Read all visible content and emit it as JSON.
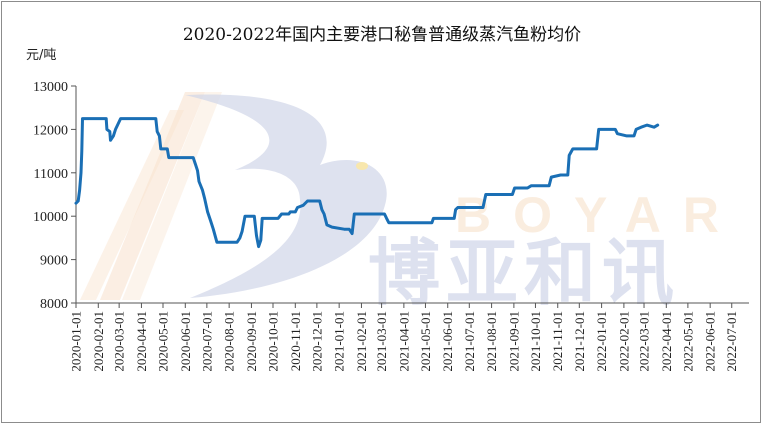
{
  "chart_data": {
    "type": "line",
    "title": "2020-2022年国内主要港口秘鲁普通级蒸汽鱼粉均价",
    "ylabel": "元/吨",
    "xlabel": "",
    "ylim": [
      8000,
      13000
    ],
    "yticks": [
      8000,
      9000,
      10000,
      11000,
      12000,
      13000
    ],
    "grid": false,
    "legend": "none",
    "line_color": "#1a6fb5",
    "watermark": {
      "logo_letter": "B",
      "en": "BOYAR",
      "cn": "博亚和讯"
    },
    "x_tick_labels": [
      "2020-01-01",
      "2020-02-01",
      "2020-03-01",
      "2020-04-01",
      "2020-05-01",
      "2020-06-01",
      "2020-07-01",
      "2020-08-01",
      "2020-09-01",
      "2020-10-01",
      "2020-11-01",
      "2020-12-01",
      "2021-01-01",
      "2021-02-01",
      "2021-03-01",
      "2021-04-01",
      "2021-05-01",
      "2021-06-01",
      "2021-07-01",
      "2021-08-01",
      "2021-09-01",
      "2021-10-01",
      "2021-11-01",
      "2021-12-01",
      "2022-01-01",
      "2022-02-01",
      "2022-03-01",
      "2022-04-01",
      "2022-05-01",
      "2022-06-01",
      "2022-07-01"
    ],
    "series": [
      {
        "points": [
          [
            "2020-01-01",
            10300
          ],
          [
            "2020-01-04",
            10350
          ],
          [
            "2020-01-06",
            10600
          ],
          [
            "2020-01-08",
            11000
          ],
          [
            "2020-01-09",
            11500
          ],
          [
            "2020-01-10",
            12250
          ],
          [
            "2020-02-12",
            12250
          ],
          [
            "2020-02-13",
            12000
          ],
          [
            "2020-02-17",
            11950
          ],
          [
            "2020-02-18",
            11750
          ],
          [
            "2020-02-22",
            11850
          ],
          [
            "2020-02-25",
            12000
          ],
          [
            "2020-03-03",
            12250
          ],
          [
            "2020-04-21",
            12250
          ],
          [
            "2020-04-23",
            11950
          ],
          [
            "2020-04-26",
            11850
          ],
          [
            "2020-04-28",
            11550
          ],
          [
            "2020-05-07",
            11550
          ],
          [
            "2020-05-09",
            11350
          ],
          [
            "2020-06-01",
            11350
          ],
          [
            "2020-06-12",
            11350
          ],
          [
            "2020-06-15",
            11200
          ],
          [
            "2020-06-18",
            11050
          ],
          [
            "2020-06-20",
            10800
          ],
          [
            "2020-06-25",
            10600
          ],
          [
            "2020-06-28",
            10400
          ],
          [
            "2020-07-02",
            10100
          ],
          [
            "2020-07-06",
            9900
          ],
          [
            "2020-07-10",
            9700
          ],
          [
            "2020-07-15",
            9400
          ],
          [
            "2020-08-12",
            9400
          ],
          [
            "2020-08-16",
            9500
          ],
          [
            "2020-08-19",
            9650
          ],
          [
            "2020-08-23",
            10000
          ],
          [
            "2020-09-05",
            10000
          ],
          [
            "2020-09-08",
            9550
          ],
          [
            "2020-09-11",
            9300
          ],
          [
            "2020-09-14",
            9450
          ],
          [
            "2020-09-16",
            9950
          ],
          [
            "2020-10-08",
            9950
          ],
          [
            "2020-10-13",
            10050
          ],
          [
            "2020-10-23",
            10050
          ],
          [
            "2020-10-25",
            10100
          ],
          [
            "2020-11-01",
            10100
          ],
          [
            "2020-11-04",
            10200
          ],
          [
            "2020-11-12",
            10250
          ],
          [
            "2020-11-18",
            10350
          ],
          [
            "2020-12-05",
            10350
          ],
          [
            "2020-12-08",
            10150
          ],
          [
            "2020-12-11",
            10050
          ],
          [
            "2020-12-15",
            9800
          ],
          [
            "2020-12-22",
            9750
          ],
          [
            "2021-01-08",
            9700
          ],
          [
            "2021-01-15",
            9700
          ],
          [
            "2021-01-19",
            9600
          ],
          [
            "2021-01-22",
            10050
          ],
          [
            "2021-03-05",
            10050
          ],
          [
            "2021-03-08",
            9950
          ],
          [
            "2021-03-11",
            9850
          ],
          [
            "2021-05-10",
            9850
          ],
          [
            "2021-05-12",
            9950
          ],
          [
            "2021-06-10",
            9950
          ],
          [
            "2021-06-12",
            10150
          ],
          [
            "2021-06-15",
            10200
          ],
          [
            "2021-07-20",
            10200
          ],
          [
            "2021-07-24",
            10500
          ],
          [
            "2021-08-30",
            10500
          ],
          [
            "2021-09-02",
            10650
          ],
          [
            "2021-09-20",
            10650
          ],
          [
            "2021-09-25",
            10700
          ],
          [
            "2021-10-20",
            10700
          ],
          [
            "2021-10-23",
            10900
          ],
          [
            "2021-11-05",
            10950
          ],
          [
            "2021-11-15",
            10950
          ],
          [
            "2021-11-17",
            11400
          ],
          [
            "2021-11-22",
            11550
          ],
          [
            "2021-12-25",
            11550
          ],
          [
            "2021-12-28",
            12000
          ],
          [
            "2022-01-20",
            12000
          ],
          [
            "2022-01-23",
            11900
          ],
          [
            "2022-02-05",
            11850
          ],
          [
            "2022-02-15",
            11850
          ],
          [
            "2022-02-18",
            12000
          ],
          [
            "2022-02-25",
            12050
          ],
          [
            "2022-03-05",
            12100
          ],
          [
            "2022-03-15",
            12050
          ],
          [
            "2022-03-20",
            12100
          ]
        ]
      }
    ]
  }
}
